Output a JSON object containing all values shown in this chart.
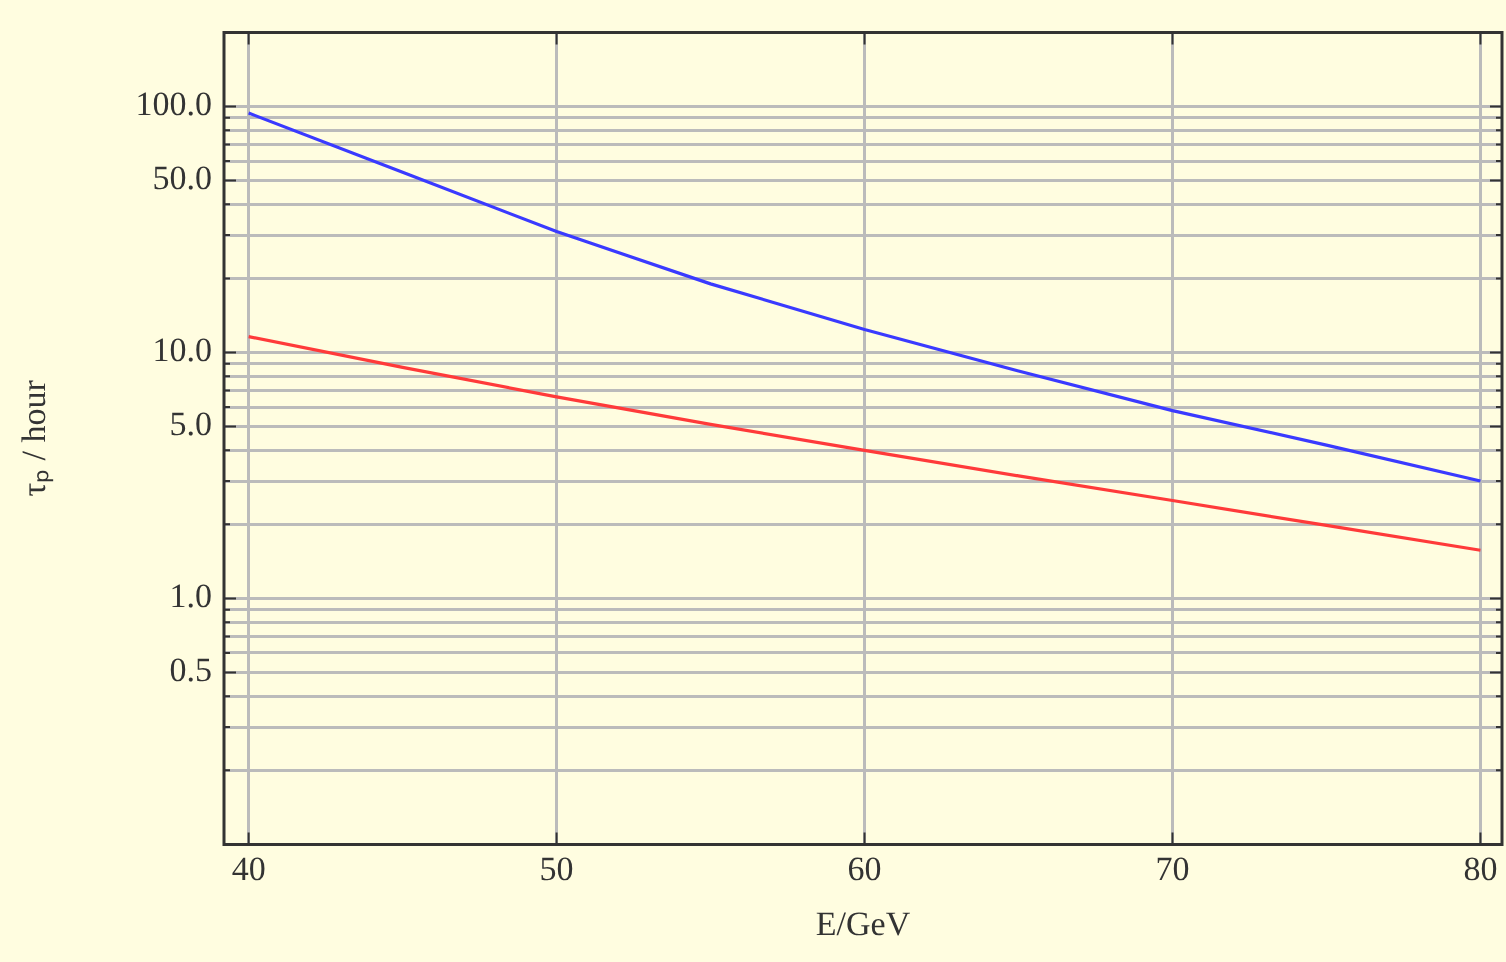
{
  "chart_data": {
    "type": "line",
    "xlabel": "E/GeV",
    "ylabel": "τₚ / hour",
    "log": "y",
    "grid": true,
    "legend": false,
    "marker": "none",
    "line_style": "solid",
    "x": [
      40,
      45,
      50,
      55,
      60,
      65,
      70,
      75,
      80
    ],
    "xlim": [
      39.2,
      80.7
    ],
    "xticks": [
      40,
      50,
      60,
      70,
      80
    ],
    "ylim": [
      0.1,
      200
    ],
    "yticks": [
      {
        "value": 0.2,
        "label": null
      },
      {
        "value": 0.3,
        "label": null
      },
      {
        "value": 0.4,
        "label": null
      },
      {
        "value": 0.5,
        "label": "0.5"
      },
      {
        "value": 0.6,
        "label": null
      },
      {
        "value": 0.7,
        "label": null
      },
      {
        "value": 0.8,
        "label": null
      },
      {
        "value": 0.9,
        "label": null
      },
      {
        "value": 1,
        "label": "1.0"
      },
      {
        "value": 2,
        "label": null
      },
      {
        "value": 3,
        "label": null
      },
      {
        "value": 4,
        "label": null
      },
      {
        "value": 5,
        "label": "5.0"
      },
      {
        "value": 6,
        "label": null
      },
      {
        "value": 7,
        "label": null
      },
      {
        "value": 8,
        "label": null
      },
      {
        "value": 9,
        "label": null
      },
      {
        "value": 10,
        "label": "10.0"
      },
      {
        "value": 20,
        "label": null
      },
      {
        "value": 30,
        "label": null
      },
      {
        "value": 40,
        "label": null
      },
      {
        "value": 50,
        "label": "50.0"
      },
      {
        "value": 60,
        "label": null
      },
      {
        "value": 70,
        "label": null
      },
      {
        "value": 80,
        "label": null
      },
      {
        "value": 90,
        "label": null
      },
      {
        "value": 100,
        "label": "100.0"
      }
    ],
    "series": [
      {
        "color": "#3a3aff",
        "values": [
          94,
          54,
          31,
          19,
          12.4,
          8.4,
          5.8,
          4.2,
          3.0
        ]
      },
      {
        "color": "#ff3a3a",
        "values": [
          11.6,
          8.7,
          6.6,
          5.1,
          4.0,
          3.15,
          2.5,
          1.98,
          1.57
        ]
      }
    ]
  }
}
